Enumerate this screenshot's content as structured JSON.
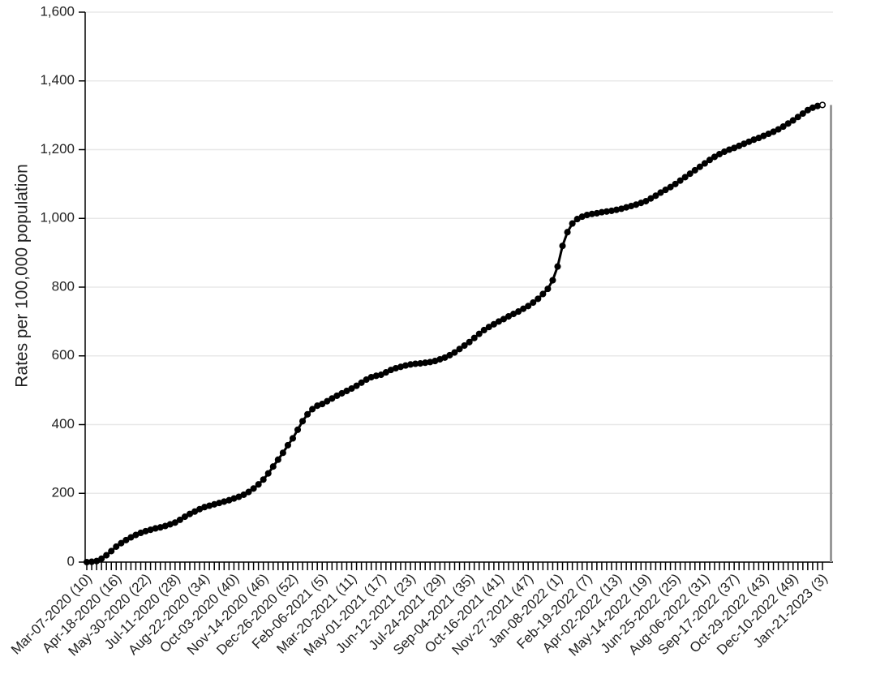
{
  "chart_data": {
    "type": "line",
    "y_label": "Rates per 100,000 population",
    "color": "#000000",
    "grid": true,
    "ylim": [
      0,
      1600
    ],
    "yticks": [
      0,
      200,
      400,
      600,
      800,
      {
        "value": 1000,
        "label": "1,000"
      },
      {
        "value": 1200,
        "label": "1,200"
      },
      {
        "value": 1400,
        "label": "1,400"
      },
      {
        "value": 1600,
        "label": "1,600"
      }
    ],
    "categories": [
      "Mar-07-2020 (10)",
      null,
      null,
      null,
      null,
      null,
      "Apr-18-2020 (16)",
      null,
      null,
      null,
      null,
      null,
      "May-30-2020 (22)",
      null,
      null,
      null,
      null,
      null,
      "Jul-11-2020 (28)",
      null,
      null,
      null,
      null,
      null,
      "Aug-22-2020 (34)",
      null,
      null,
      null,
      null,
      null,
      "Oct-03-2020 (40)",
      null,
      null,
      null,
      null,
      null,
      "Nov-14-2020 (46)",
      null,
      null,
      null,
      null,
      null,
      "Dec-26-2020 (52)",
      null,
      null,
      null,
      null,
      null,
      "Feb-06-2021 (5)",
      null,
      null,
      null,
      null,
      null,
      "Mar-20-2021 (11)",
      null,
      null,
      null,
      null,
      null,
      "May-01-2021 (17)",
      null,
      null,
      null,
      null,
      null,
      "Jun-12-2021 (23)",
      null,
      null,
      null,
      null,
      null,
      "Jul-24-2021 (29)",
      null,
      null,
      null,
      null,
      null,
      "Sep-04-2021 (35)",
      null,
      null,
      null,
      null,
      null,
      "Oct-16-2021 (41)",
      null,
      null,
      null,
      null,
      null,
      "Nov-27-2021 (47)",
      null,
      null,
      null,
      null,
      null,
      "Jan-08-2022 (1)",
      null,
      null,
      null,
      null,
      null,
      "Feb-19-2022 (7)",
      null,
      null,
      null,
      null,
      null,
      "Apr-02-2022 (13)",
      null,
      null,
      null,
      null,
      null,
      "May-14-2022 (19)",
      null,
      null,
      null,
      null,
      null,
      "Jun-25-2022 (25)",
      null,
      null,
      null,
      null,
      null,
      "Aug-06-2022 (31)",
      null,
      null,
      null,
      null,
      null,
      "Sep-17-2022 (37)",
      null,
      null,
      null,
      null,
      null,
      "Oct-29-2022 (43)",
      null,
      null,
      null,
      null,
      null,
      "Dec-10-2022 (49)",
      null,
      null,
      null,
      null,
      null,
      "Jan-21-2023 (3)"
    ],
    "values": [
      0,
      1,
      3,
      10,
      20,
      32,
      45,
      55,
      64,
      72,
      79,
      85,
      90,
      94,
      98,
      101,
      105,
      110,
      115,
      123,
      132,
      140,
      147,
      154,
      160,
      164,
      168,
      172,
      176,
      180,
      185,
      190,
      196,
      204,
      214,
      226,
      240,
      258,
      278,
      298,
      318,
      340,
      360,
      385,
      410,
      430,
      445,
      455,
      460,
      468,
      476,
      484,
      491,
      498,
      505,
      513,
      522,
      531,
      538,
      542,
      545,
      552,
      559,
      564,
      568,
      572,
      575,
      577,
      578,
      580,
      582,
      585,
      590,
      595,
      602,
      610,
      620,
      630,
      640,
      652,
      664,
      675,
      684,
      692,
      700,
      707,
      715,
      722,
      729,
      737,
      745,
      755,
      766,
      780,
      795,
      820,
      860,
      920,
      960,
      985,
      998,
      1005,
      1010,
      1013,
      1015,
      1018,
      1020,
      1022,
      1025,
      1028,
      1032,
      1036,
      1040,
      1045,
      1050,
      1058,
      1066,
      1075,
      1083,
      1091,
      1100,
      1110,
      1120,
      1130,
      1140,
      1150,
      1160,
      1170,
      1179,
      1187,
      1194,
      1200,
      1205,
      1211,
      1217,
      1223,
      1229,
      1234,
      1240,
      1246,
      1252,
      1259,
      1267,
      1276,
      1285,
      1295,
      1305,
      1315,
      1322,
      1327,
      1330
    ]
  }
}
